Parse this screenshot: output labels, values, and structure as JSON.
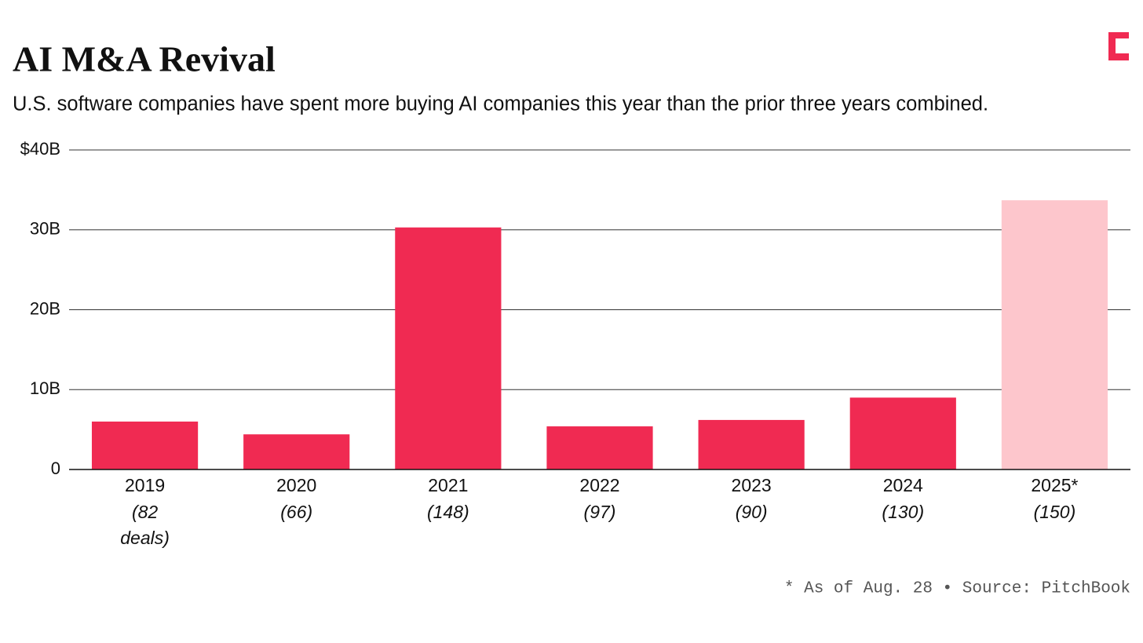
{
  "chart_data": {
    "type": "bar",
    "title": "AI M&A Revival",
    "subtitle": "U.S. software companies have spent more buying AI companies this year than the prior three years combined.",
    "categories": [
      "2019",
      "2020",
      "2021",
      "2022",
      "2023",
      "2024",
      "2025*"
    ],
    "deal_counts": [
      "(82 deals)",
      "(66)",
      "(148)",
      "(97)",
      "(90)",
      "(130)",
      "(150)"
    ],
    "values": [
      6.0,
      4.4,
      30.3,
      5.4,
      6.2,
      9.0,
      33.7
    ],
    "colors": [
      "#f02a52",
      "#f02a52",
      "#f02a52",
      "#f02a52",
      "#f02a52",
      "#f02a52",
      "#fdc6cc"
    ],
    "ylim": [
      0,
      40
    ],
    "yticks": [
      0,
      {
        "value": 10,
        "label": "10B"
      },
      {
        "value": 20,
        "label": "20B"
      },
      {
        "value": 30,
        "label": "30B"
      },
      {
        "value": 40,
        "label": "$40B"
      }
    ],
    "grid": true,
    "footnote": "* As of Aug. 28 • Source: PitchBook"
  }
}
